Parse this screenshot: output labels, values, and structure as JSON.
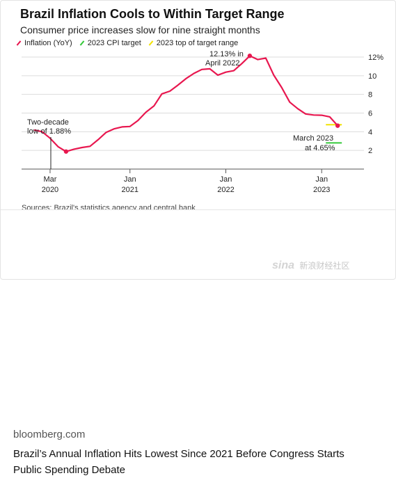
{
  "chart_data": {
    "type": "line",
    "title": "Brazil Inflation Cools to Within Target Range",
    "subtitle": "Consumer price increases slow for nine straight months",
    "legend": [
      {
        "label": "Inflation (YoY)",
        "color": "#e8174f"
      },
      {
        "label": "2023 CPI target",
        "color": "#35c93a"
      },
      {
        "label": "2023 top of target range",
        "color": "#f2e300"
      }
    ],
    "ylim": [
      0,
      12
    ],
    "y_ticks": [
      "12%",
      "10",
      "8",
      "6",
      "4",
      "2"
    ],
    "x_ticks": [
      {
        "line1": "Mar",
        "line2": "2020"
      },
      {
        "line1": "Jan",
        "line2": "2021"
      },
      {
        "line1": "Jan",
        "line2": "2022"
      },
      {
        "line1": "Jan",
        "line2": "2023"
      }
    ],
    "series": [
      {
        "name": "Inflation (YoY)",
        "color": "#e8174f",
        "x": [
          "2020-01",
          "2020-02",
          "2020-03",
          "2020-04",
          "2020-05",
          "2020-06",
          "2020-07",
          "2020-08",
          "2020-09",
          "2020-10",
          "2020-11",
          "2020-12",
          "2021-01",
          "2021-02",
          "2021-03",
          "2021-04",
          "2021-05",
          "2021-06",
          "2021-07",
          "2021-08",
          "2021-09",
          "2021-10",
          "2021-11",
          "2021-12",
          "2022-01",
          "2022-02",
          "2022-03",
          "2022-04",
          "2022-05",
          "2022-06",
          "2022-07",
          "2022-08",
          "2022-09",
          "2022-10",
          "2022-11",
          "2022-12",
          "2023-01",
          "2023-02",
          "2023-03"
        ],
        "y": [
          4.19,
          4.0,
          3.3,
          2.4,
          1.88,
          2.13,
          2.31,
          2.44,
          3.14,
          3.92,
          4.31,
          4.52,
          4.56,
          5.2,
          6.1,
          6.76,
          8.06,
          8.35,
          8.99,
          9.68,
          10.25,
          10.67,
          10.74,
          10.06,
          10.38,
          10.54,
          11.3,
          12.13,
          11.73,
          11.89,
          10.07,
          8.73,
          7.17,
          6.47,
          5.9,
          5.79,
          5.77,
          5.6,
          4.65
        ]
      }
    ],
    "cpi_target": 3.25,
    "target_top": 4.75,
    "annotations": {
      "low": {
        "line1": "Two-decade",
        "line2": "low of 1.88%"
      },
      "peak": {
        "line1": "12.13% in",
        "line2": "April 2022"
      },
      "latest": {
        "line1": "March 2023",
        "line2": "at 4.65%"
      }
    },
    "source": "Sources: Brazil's statistics agency and central bank"
  },
  "footer": {
    "domain": "bloomberg.com",
    "headline": "Brazil’s Annual Inflation Hits Lowest Since 2021 Before Congress Starts Public Spending Debate"
  },
  "watermark": {
    "logo": "sina",
    "text": "新浪财经社区"
  }
}
